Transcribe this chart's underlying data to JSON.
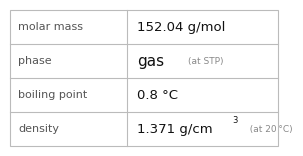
{
  "rows": [
    {
      "label": "molar mass",
      "value": "152.04 g/mol",
      "superscript": null,
      "note": null
    },
    {
      "label": "phase",
      "value": "gas",
      "superscript": null,
      "note": "at STP"
    },
    {
      "label": "boiling point",
      "value": "0.8 °C",
      "superscript": null,
      "note": null
    },
    {
      "label": "density",
      "value": "1.371 g/cm",
      "superscript": "3",
      "note": "at 20 °C"
    }
  ],
  "bg_color": "#ffffff",
  "border_color": "#bbbbbb",
  "label_color": "#555555",
  "value_color": "#111111",
  "note_color": "#888888",
  "col_split": 0.435,
  "label_fontsize": 8.0,
  "value_fontsize": 9.5,
  "note_fontsize": 6.5,
  "phase_fontsize": 11.0
}
